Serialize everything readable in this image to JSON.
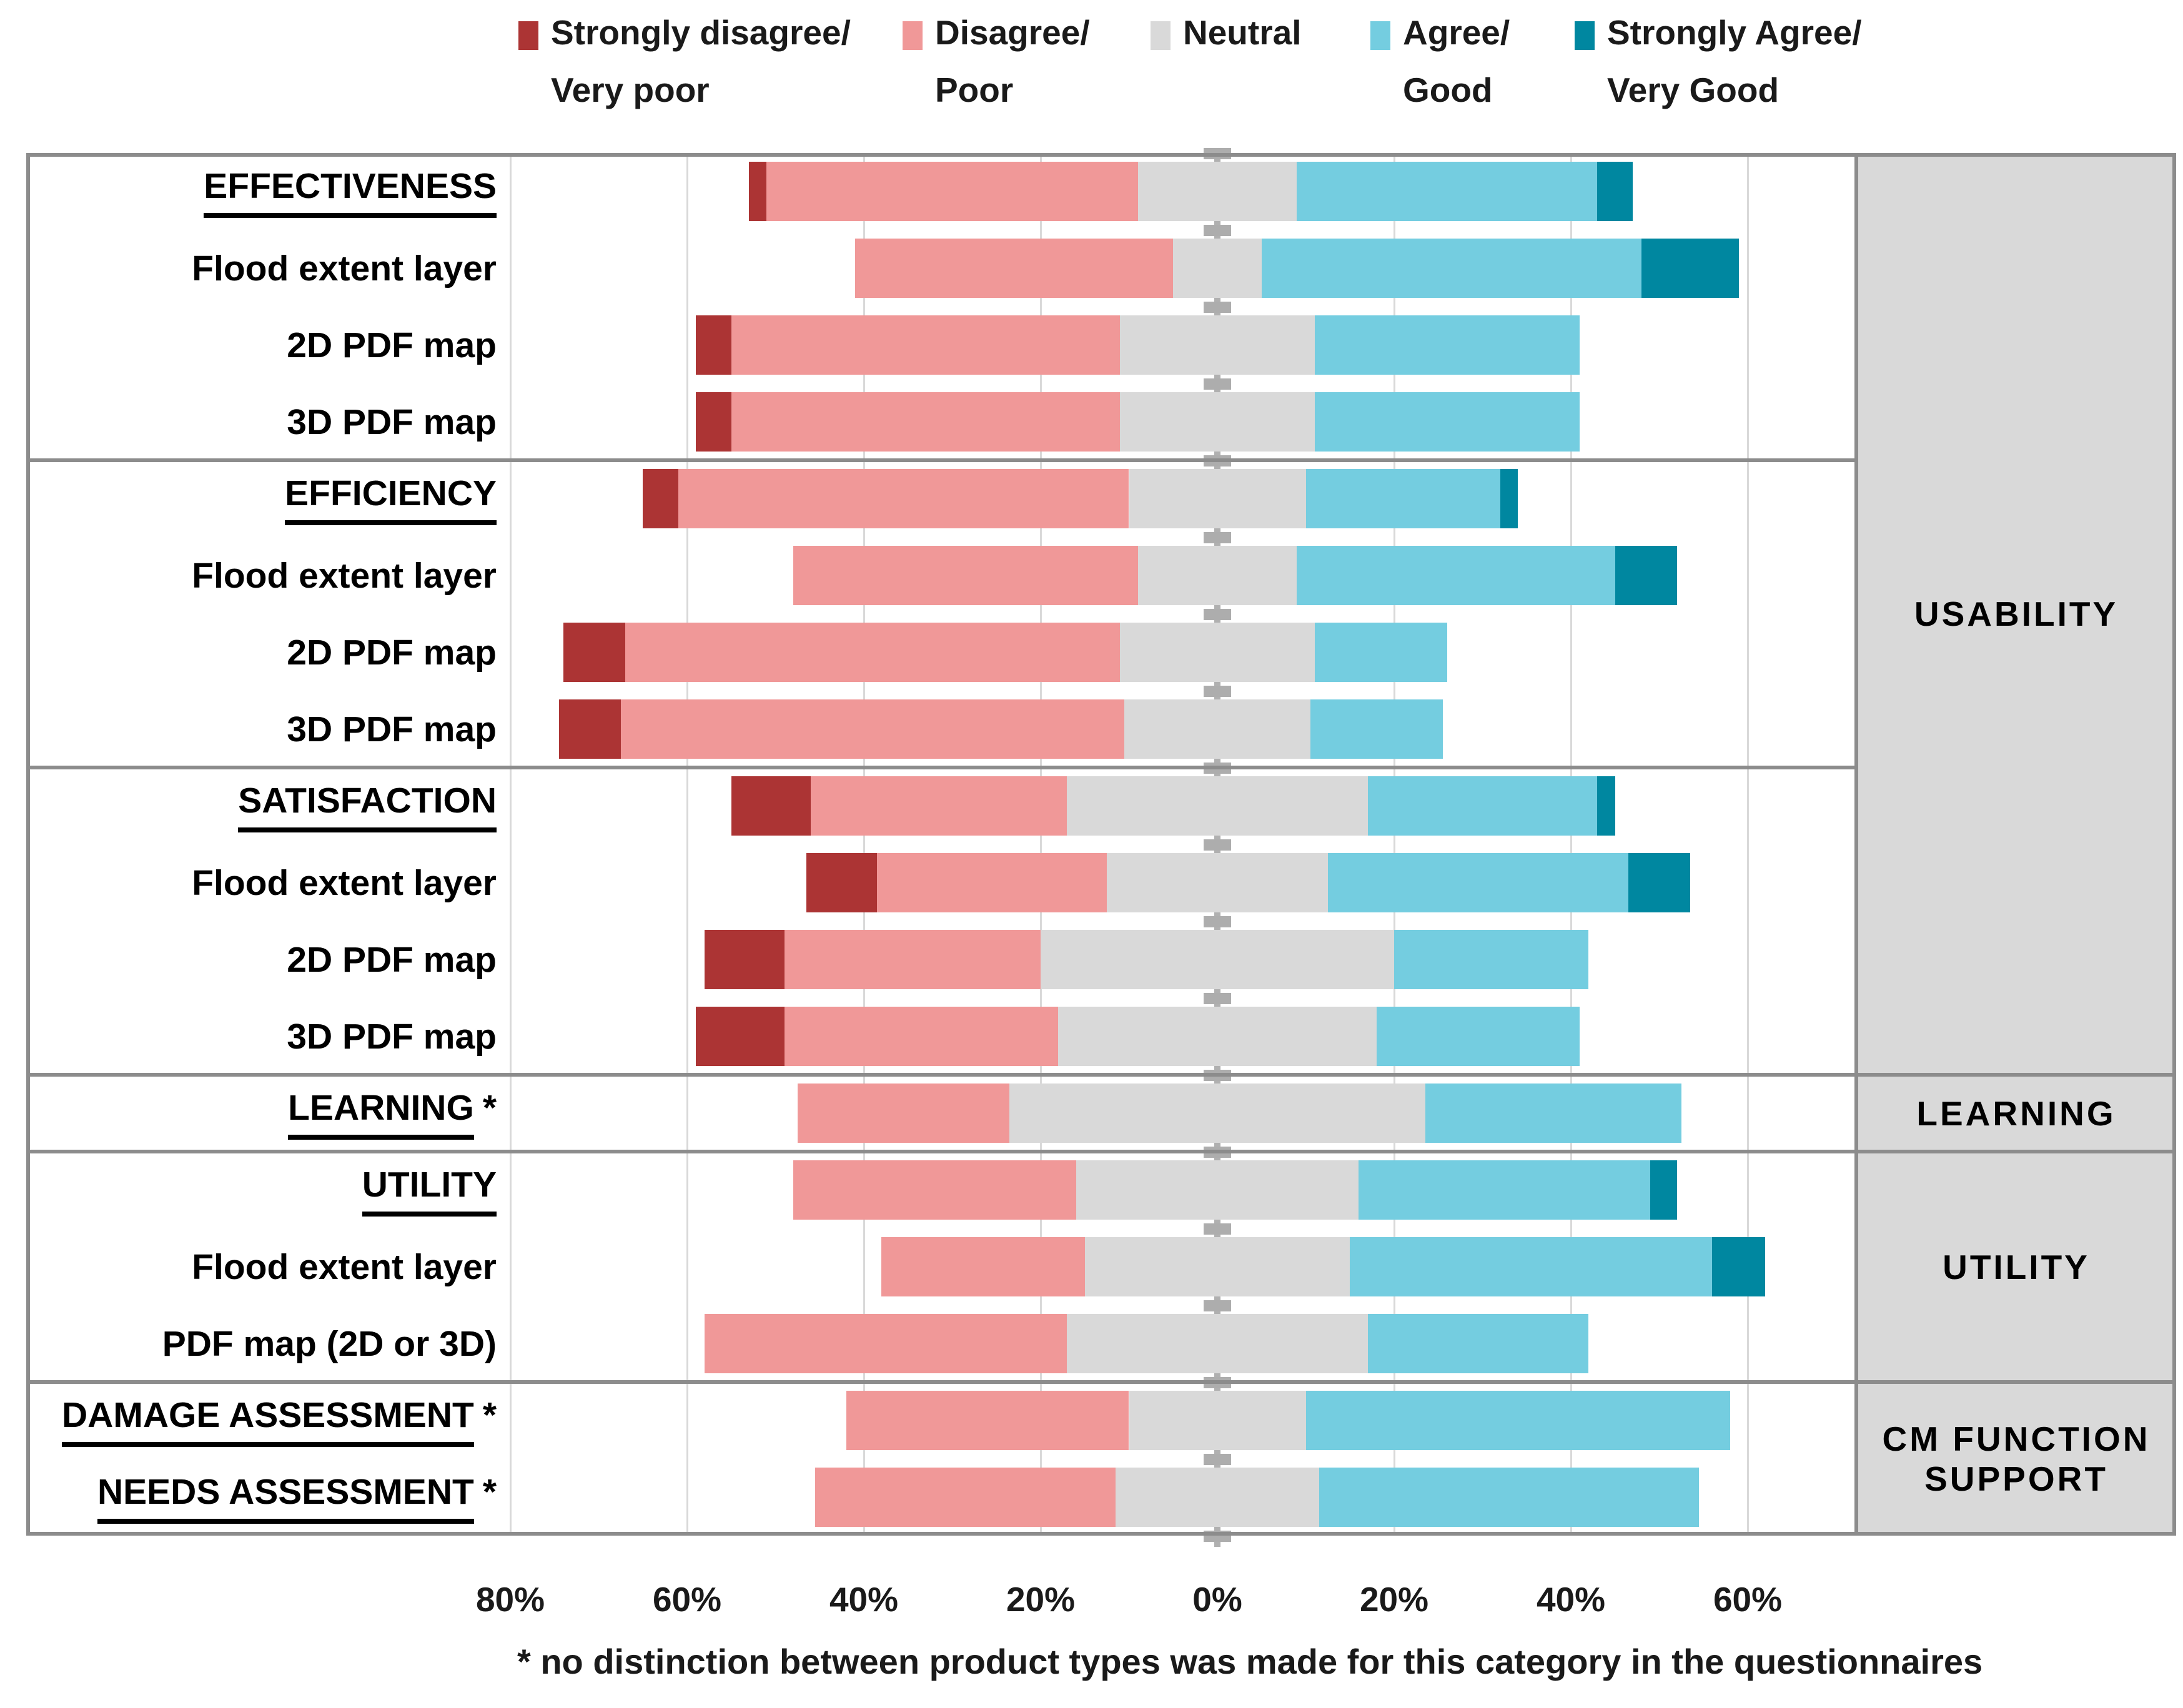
{
  "legend": {
    "items": [
      {
        "label1": "Strongly disagree/",
        "label2": "Very poor",
        "color": "#AC3434",
        "x": 830
      },
      {
        "label1": "Disagree/",
        "label2": "Poor",
        "color": "#F09898",
        "x": 1445
      },
      {
        "label1": "Neutral",
        "label2": "",
        "color": "#D9D9D9",
        "x": 1842
      },
      {
        "label1": "Agree/",
        "label2": "Good",
        "color": "#74CDE0",
        "x": 2194
      },
      {
        "label1": "Strongly Agree/",
        "label2": "Very Good",
        "color": "#0087A0",
        "x": 2521
      }
    ]
  },
  "axis": {
    "tick_labels": [
      "80%",
      "60%",
      "40%",
      "20%",
      "0%",
      "20%",
      "40%",
      "60%"
    ],
    "tick_values": [
      -80,
      -60,
      -40,
      -20,
      0,
      20,
      40,
      60
    ]
  },
  "footnote": "* no distinction between product types was made for this category in the questionnaires",
  "chart_data": {
    "type": "bar",
    "subtype": "horizontal-diverging-stacked",
    "unit": "percent",
    "series_order": [
      "strongly_disagree_very_poor",
      "disagree_poor",
      "neutral",
      "agree_good",
      "strongly_agree_very_good"
    ],
    "legend_entries": [
      "Strongly disagree/Very poor",
      "Disagree/Poor",
      "Neutral",
      "Agree/Good",
      "Strongly Agree/Very Good"
    ],
    "colors": [
      "#AC3434",
      "#F09898",
      "#D9D9D9",
      "#74CDE0",
      "#0087A0"
    ],
    "neutral_centered_on_zero": true,
    "xlim": [
      -80,
      62
    ],
    "axis_tick_values": [
      -80,
      -60,
      -40,
      -20,
      0,
      20,
      40,
      60
    ],
    "axis_tick_labels": [
      "80%",
      "60%",
      "40%",
      "20%",
      "0%",
      "20%",
      "40%",
      "60%"
    ],
    "rows": [
      {
        "label": "EFFECTIVENESS",
        "suffix": "",
        "header": true,
        "values": [
          2,
          42,
          18,
          34,
          4
        ]
      },
      {
        "label": "Flood extent layer",
        "suffix": "",
        "header": false,
        "values": [
          0,
          36,
          10,
          43,
          11
        ]
      },
      {
        "label": "2D PDF map",
        "suffix": "",
        "header": false,
        "values": [
          4,
          44,
          22,
          30,
          0
        ]
      },
      {
        "label": "3D PDF map",
        "suffix": "",
        "header": false,
        "values": [
          4,
          44,
          22,
          30,
          0
        ]
      },
      {
        "label": "EFFICIENCY",
        "suffix": "",
        "header": true,
        "values": [
          4,
          51,
          20,
          22,
          2
        ]
      },
      {
        "label": "Flood extent layer",
        "suffix": "",
        "header": false,
        "values": [
          0,
          39,
          18,
          36,
          7
        ]
      },
      {
        "label": "2D PDF map",
        "suffix": "",
        "header": false,
        "values": [
          7,
          56,
          22,
          15,
          0
        ]
      },
      {
        "label": "3D PDF map",
        "suffix": "",
        "header": false,
        "values": [
          7,
          57,
          21,
          15,
          0
        ]
      },
      {
        "label": "SATISFACTION",
        "suffix": "",
        "header": true,
        "values": [
          9,
          29,
          34,
          26,
          2
        ]
      },
      {
        "label": "Flood extent layer",
        "suffix": "",
        "header": false,
        "values": [
          8,
          26,
          25,
          34,
          7
        ]
      },
      {
        "label": "2D PDF map",
        "suffix": "",
        "header": false,
        "values": [
          9,
          29,
          40,
          22,
          0
        ]
      },
      {
        "label": "3D PDF map",
        "suffix": "",
        "header": false,
        "values": [
          10,
          31,
          36,
          23,
          0
        ]
      },
      {
        "label": "LEARNING",
        "suffix": "*",
        "header": true,
        "values": [
          0,
          24,
          47,
          29,
          0
        ]
      },
      {
        "label": "UTILITY",
        "suffix": "",
        "header": true,
        "values": [
          0,
          32,
          32,
          33,
          3
        ]
      },
      {
        "label": "Flood extent layer",
        "suffix": "",
        "header": false,
        "values": [
          0,
          23,
          30,
          41,
          6
        ]
      },
      {
        "label": "PDF map (2D or 3D)",
        "suffix": "",
        "header": false,
        "values": [
          0,
          41,
          34,
          25,
          0
        ]
      },
      {
        "label": "DAMAGE ASSESSMENT",
        "suffix": "*",
        "header": true,
        "values": [
          0,
          32,
          20,
          48,
          0
        ]
      },
      {
        "label": "NEEDS ASSESSMENT",
        "suffix": "*",
        "header": true,
        "values": [
          0,
          34,
          23,
          43,
          0
        ]
      }
    ],
    "section_breaks_after_row": [
      3,
      7,
      11,
      12,
      15
    ],
    "side_groups": [
      {
        "label": "USABILITY",
        "row_start": 0,
        "row_end": 11
      },
      {
        "label": "LEARNING",
        "row_start": 12,
        "row_end": 12
      },
      {
        "label": "UTILITY",
        "row_start": 13,
        "row_end": 15
      },
      {
        "label": "CM FUNCTION SUPPORT",
        "row_start": 16,
        "row_end": 17
      }
    ]
  }
}
